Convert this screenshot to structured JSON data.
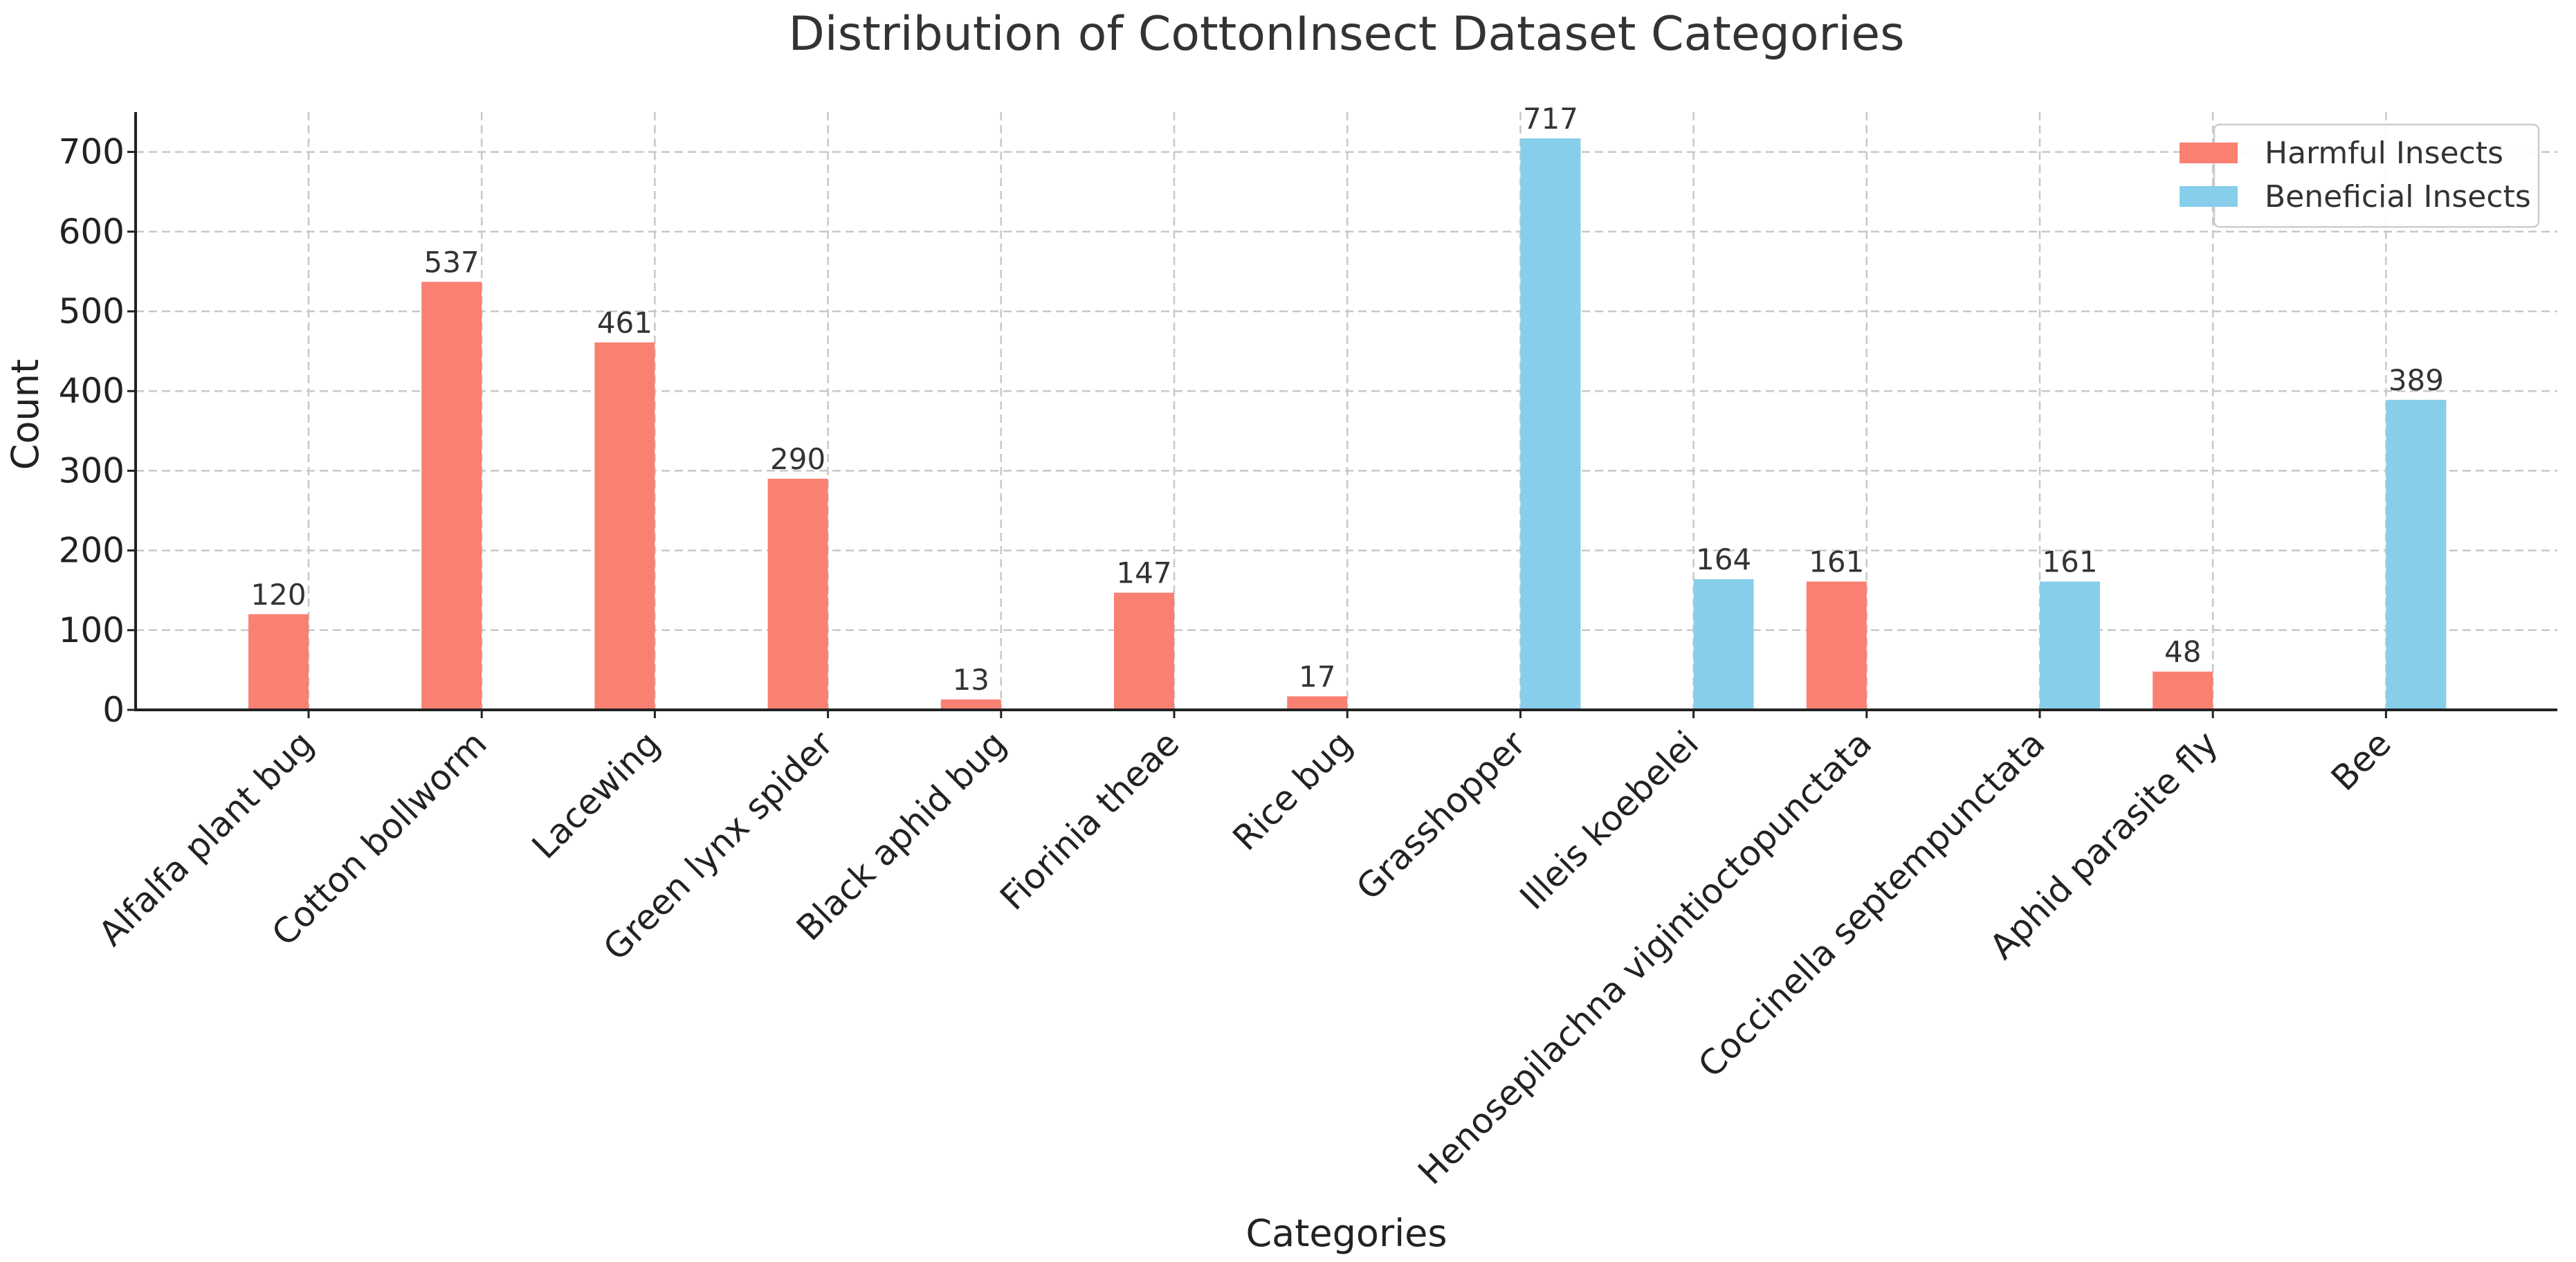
{
  "chart_data": {
    "type": "bar",
    "title": "Distribution of CottonInsect Dataset Categories",
    "xlabel": "Categories",
    "ylabel": "Count",
    "ylim": [
      0,
      750
    ],
    "yticks": [
      0,
      100,
      200,
      300,
      400,
      500,
      600,
      700
    ],
    "grid": true,
    "legend_position": "top-right",
    "categories": [
      "Alfalfa plant bug",
      "Cotton bollworm",
      "Lacewing",
      "Green lynx spider",
      "Black aphid bug",
      "Fiorinia theae",
      "Rice bug",
      "Grasshopper",
      "Illeis koebelei",
      "Henosepilachna vigintioctopunctata",
      "Coccinella septempunctata",
      "Aphid parasite fly",
      "Bee"
    ],
    "series": [
      {
        "name": "Harmful Insects",
        "color": "#FA8072",
        "values": [
          120,
          537,
          461,
          290,
          13,
          147,
          17,
          null,
          null,
          161,
          null,
          48,
          null
        ]
      },
      {
        "name": "Beneficial Insects",
        "color": "#87CEEB",
        "values": [
          null,
          null,
          null,
          null,
          null,
          null,
          null,
          717,
          164,
          null,
          161,
          null,
          389
        ]
      }
    ]
  }
}
